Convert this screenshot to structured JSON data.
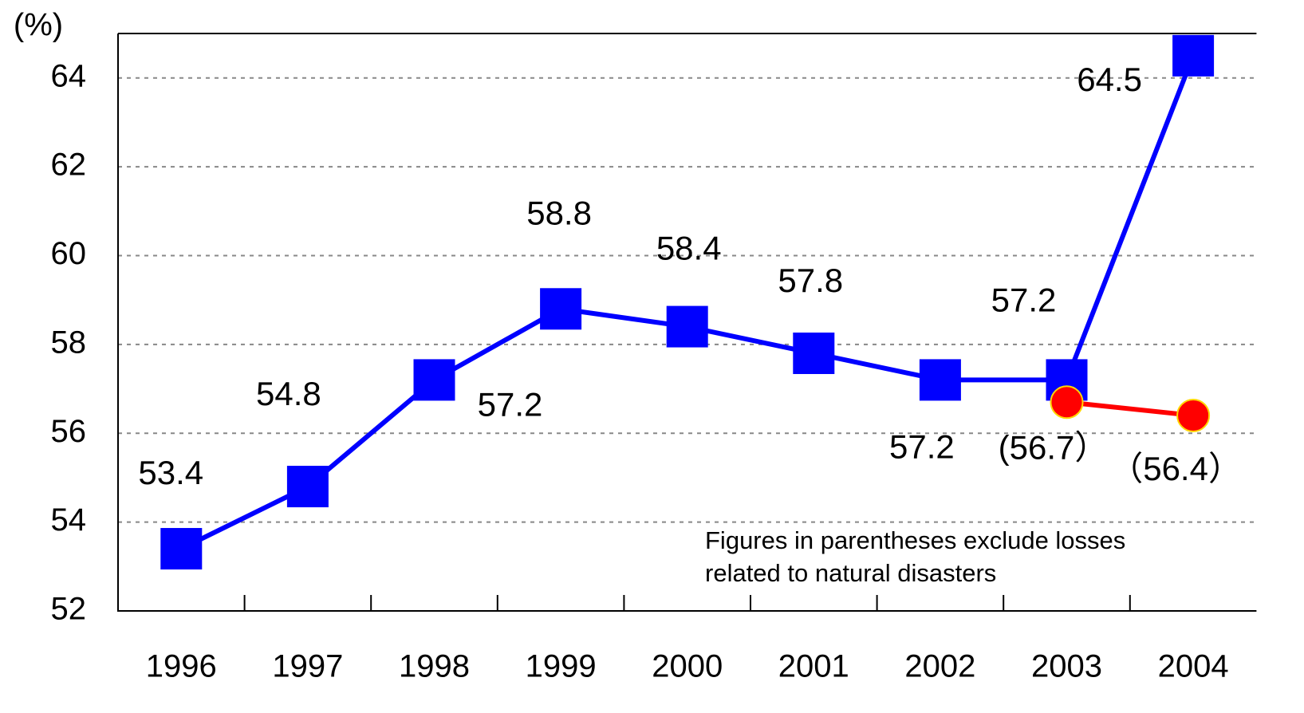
{
  "chart_data": {
    "type": "line",
    "y_label": "(%)",
    "categories": [
      "1996",
      "1997",
      "1998",
      "1999",
      "2000",
      "2001",
      "2002",
      "2003",
      "2004"
    ],
    "series": [
      {
        "name": null,
        "color": "#0000ff",
        "marker": "square",
        "values": [
          53.4,
          54.8,
          57.2,
          58.8,
          58.4,
          57.8,
          57.2,
          57.2,
          64.5
        ]
      },
      {
        "name": null,
        "color": "#ff0000",
        "marker": "circle",
        "values": [
          null,
          null,
          null,
          null,
          null,
          null,
          null,
          56.7,
          56.4
        ],
        "value_labels": [
          null,
          null,
          null,
          null,
          null,
          null,
          null,
          "(56.7）",
          "（56.4）"
        ]
      }
    ],
    "ylim": [
      52,
      65
    ],
    "yticks": [
      52,
      54,
      56,
      58,
      60,
      62,
      64
    ],
    "grid": true,
    "annotation": [
      "Figures in parentheses exclude losses",
      "related to natural disasters"
    ]
  }
}
